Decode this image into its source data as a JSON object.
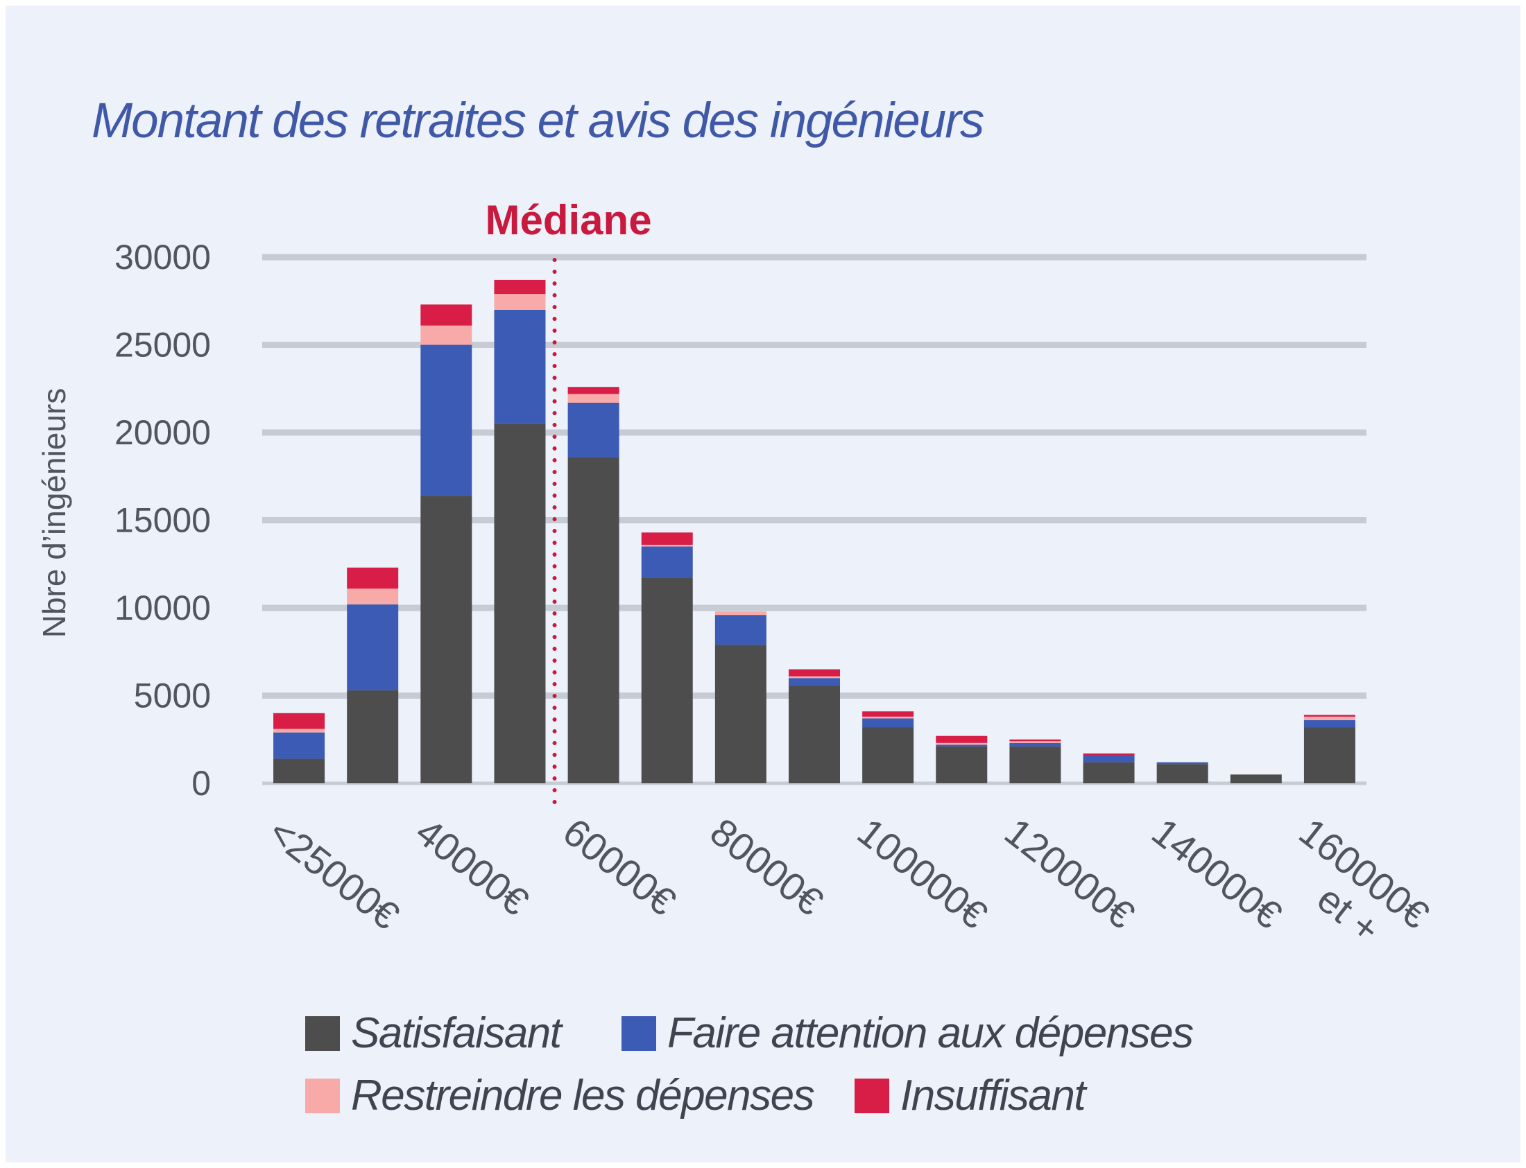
{
  "chart_data": {
    "type": "bar",
    "stacked": true,
    "title": "Montant des retraites et avis des ingénieurs",
    "ylabel": "Nbre d’ingénieurs",
    "xlabel": "",
    "ylim": [
      0,
      30000
    ],
    "yticks": [
      "0",
      "5000",
      "10000",
      "15000",
      "20000",
      "25000",
      "30000"
    ],
    "grid": true,
    "legend_position": "bottom",
    "categories": [
      "<25000€",
      "",
      "40000€",
      "",
      "60000€",
      "",
      "80000€",
      "",
      "100000€",
      "",
      "120000€",
      "",
      "140000€",
      "",
      "160000€ et +"
    ],
    "x_tick_labels": [
      {
        "index": 0,
        "lines": [
          "<25000€"
        ]
      },
      {
        "index": 2,
        "lines": [
          "40000€"
        ]
      },
      {
        "index": 4,
        "lines": [
          "60000€"
        ]
      },
      {
        "index": 6,
        "lines": [
          "80000€"
        ]
      },
      {
        "index": 8,
        "lines": [
          "100000€"
        ]
      },
      {
        "index": 10,
        "lines": [
          "120000€"
        ]
      },
      {
        "index": 12,
        "lines": [
          "140000€"
        ]
      },
      {
        "index": 14,
        "lines": [
          "160000€",
          "et +"
        ]
      }
    ],
    "series": [
      {
        "name": "Satisfaisant",
        "color": "#4d4d4d",
        "values": [
          1400,
          5300,
          16400,
          20500,
          18600,
          11700,
          7900,
          5600,
          3200,
          2100,
          2100,
          1200,
          1100,
          500,
          3200
        ]
      },
      {
        "name": "Faire attention aux dépenses",
        "color": "#3c5bb4",
        "values": [
          1500,
          4900,
          8600,
          6500,
          3100,
          1800,
          1700,
          400,
          500,
          100,
          200,
          400,
          100,
          0,
          400
        ]
      },
      {
        "name": "Restreindre les dépenses",
        "color": "#f7aaa8",
        "values": [
          200,
          900,
          1100,
          900,
          500,
          100,
          200,
          100,
          100,
          100,
          100,
          0,
          0,
          0,
          200
        ]
      },
      {
        "name": "Insuffisant",
        "color": "#d81d46",
        "values": [
          900,
          1200,
          1200,
          800,
          400,
          700,
          0,
          400,
          300,
          400,
          100,
          100,
          0,
          0,
          100
        ]
      }
    ],
    "annotation": {
      "label": "Médiane",
      "color": "#c8193f",
      "between_index": [
        3,
        4
      ]
    }
  }
}
